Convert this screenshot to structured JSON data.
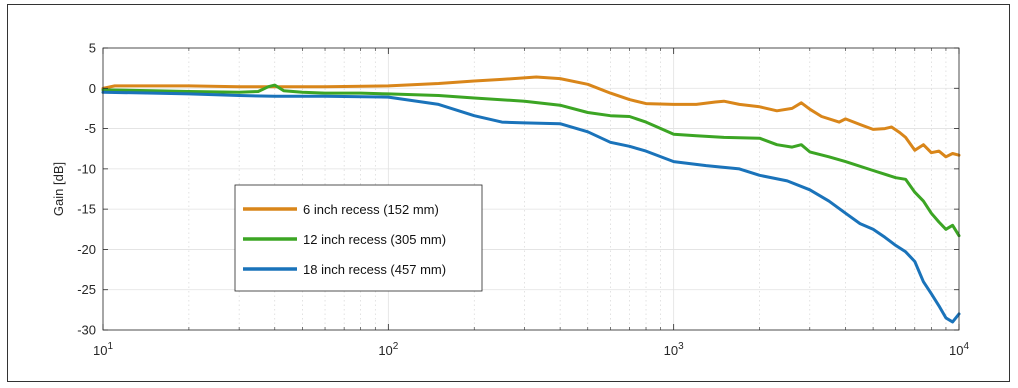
{
  "chart_data": {
    "type": "line",
    "xscale": "log",
    "xlim": [
      10,
      10000
    ],
    "ylim": [
      -30,
      5
    ],
    "xticks": [
      10,
      100,
      1000,
      10000
    ],
    "xtick_labels": [
      {
        "base": "10",
        "exp": "1"
      },
      {
        "base": "10",
        "exp": "2"
      },
      {
        "base": "10",
        "exp": "3"
      },
      {
        "base": "10",
        "exp": "4"
      }
    ],
    "yticks": [
      5,
      0,
      -5,
      -10,
      -15,
      -20,
      -25,
      -30
    ],
    "ytick_labels": [
      "5",
      "0",
      "-5",
      "-10",
      "-15",
      "-20",
      "-25",
      "-30"
    ],
    "xlabel": "",
    "ylabel": "Gain [dB]",
    "grid": true,
    "legend_position": "lower-left",
    "series": [
      {
        "name": "6 inch recess (152 mm)",
        "color": "#D9861A",
        "points": [
          [
            10,
            0.0
          ],
          [
            11,
            0.3
          ],
          [
            15,
            0.3
          ],
          [
            20,
            0.3
          ],
          [
            30,
            0.2
          ],
          [
            40,
            0.2
          ],
          [
            60,
            0.2
          ],
          [
            100,
            0.3
          ],
          [
            150,
            0.6
          ],
          [
            200,
            0.9
          ],
          [
            250,
            1.1
          ],
          [
            330,
            1.4
          ],
          [
            400,
            1.2
          ],
          [
            500,
            0.5
          ],
          [
            600,
            -0.6
          ],
          [
            700,
            -1.4
          ],
          [
            800,
            -1.9
          ],
          [
            1000,
            -2.0
          ],
          [
            1200,
            -2.0
          ],
          [
            1400,
            -1.7
          ],
          [
            1500,
            -1.6
          ],
          [
            1700,
            -2.0
          ],
          [
            2000,
            -2.3
          ],
          [
            2300,
            -2.8
          ],
          [
            2600,
            -2.5
          ],
          [
            2800,
            -1.8
          ],
          [
            3000,
            -2.6
          ],
          [
            3300,
            -3.5
          ],
          [
            3800,
            -4.2
          ],
          [
            4000,
            -3.8
          ],
          [
            4500,
            -4.5
          ],
          [
            5000,
            -5.1
          ],
          [
            5500,
            -5.0
          ],
          [
            5800,
            -4.8
          ],
          [
            6200,
            -5.5
          ],
          [
            6500,
            -6.1
          ],
          [
            7000,
            -7.7
          ],
          [
            7500,
            -7.0
          ],
          [
            8000,
            -8.0
          ],
          [
            8500,
            -7.8
          ],
          [
            9000,
            -8.5
          ],
          [
            9500,
            -8.1
          ],
          [
            10000,
            -8.3
          ]
        ]
      },
      {
        "name": "12 inch recess (305 mm)",
        "color": "#3CA524",
        "points": [
          [
            10,
            -0.2
          ],
          [
            15,
            -0.3
          ],
          [
            20,
            -0.4
          ],
          [
            30,
            -0.5
          ],
          [
            35,
            -0.4
          ],
          [
            38,
            0.2
          ],
          [
            40,
            0.4
          ],
          [
            43,
            -0.3
          ],
          [
            50,
            -0.5
          ],
          [
            60,
            -0.6
          ],
          [
            80,
            -0.6
          ],
          [
            100,
            -0.7
          ],
          [
            150,
            -0.9
          ],
          [
            200,
            -1.2
          ],
          [
            300,
            -1.6
          ],
          [
            400,
            -2.1
          ],
          [
            500,
            -3.0
          ],
          [
            600,
            -3.4
          ],
          [
            700,
            -3.5
          ],
          [
            800,
            -4.2
          ],
          [
            1000,
            -5.7
          ],
          [
            1200,
            -5.9
          ],
          [
            1500,
            -6.1
          ],
          [
            2000,
            -6.2
          ],
          [
            2300,
            -7.0
          ],
          [
            2600,
            -7.3
          ],
          [
            2800,
            -7.0
          ],
          [
            3000,
            -7.9
          ],
          [
            3500,
            -8.5
          ],
          [
            4000,
            -9.1
          ],
          [
            5000,
            -10.2
          ],
          [
            6000,
            -11.1
          ],
          [
            6500,
            -11.3
          ],
          [
            7000,
            -12.9
          ],
          [
            7500,
            -14.0
          ],
          [
            8000,
            -15.5
          ],
          [
            8500,
            -16.6
          ],
          [
            9000,
            -17.5
          ],
          [
            9500,
            -17.0
          ],
          [
            10000,
            -18.3
          ]
        ]
      },
      {
        "name": "18 inch recess (457 mm)",
        "color": "#1A73BA",
        "points": [
          [
            10,
            -0.5
          ],
          [
            15,
            -0.6
          ],
          [
            20,
            -0.7
          ],
          [
            30,
            -0.9
          ],
          [
            40,
            -1.0
          ],
          [
            60,
            -1.0
          ],
          [
            100,
            -1.1
          ],
          [
            150,
            -2.0
          ],
          [
            200,
            -3.4
          ],
          [
            250,
            -4.2
          ],
          [
            300,
            -4.3
          ],
          [
            400,
            -4.4
          ],
          [
            500,
            -5.4
          ],
          [
            600,
            -6.7
          ],
          [
            700,
            -7.2
          ],
          [
            800,
            -7.8
          ],
          [
            1000,
            -9.1
          ],
          [
            1300,
            -9.6
          ],
          [
            1700,
            -10.0
          ],
          [
            2000,
            -10.8
          ],
          [
            2500,
            -11.5
          ],
          [
            3000,
            -12.6
          ],
          [
            3500,
            -14.0
          ],
          [
            4000,
            -15.5
          ],
          [
            4500,
            -16.8
          ],
          [
            5000,
            -17.5
          ],
          [
            5500,
            -18.5
          ],
          [
            6000,
            -19.5
          ],
          [
            6500,
            -20.3
          ],
          [
            7000,
            -21.5
          ],
          [
            7500,
            -24.0
          ],
          [
            8000,
            -25.5
          ],
          [
            8500,
            -27.0
          ],
          [
            9000,
            -28.5
          ],
          [
            9500,
            -29.0
          ],
          [
            10000,
            -28.0
          ]
        ]
      }
    ]
  }
}
